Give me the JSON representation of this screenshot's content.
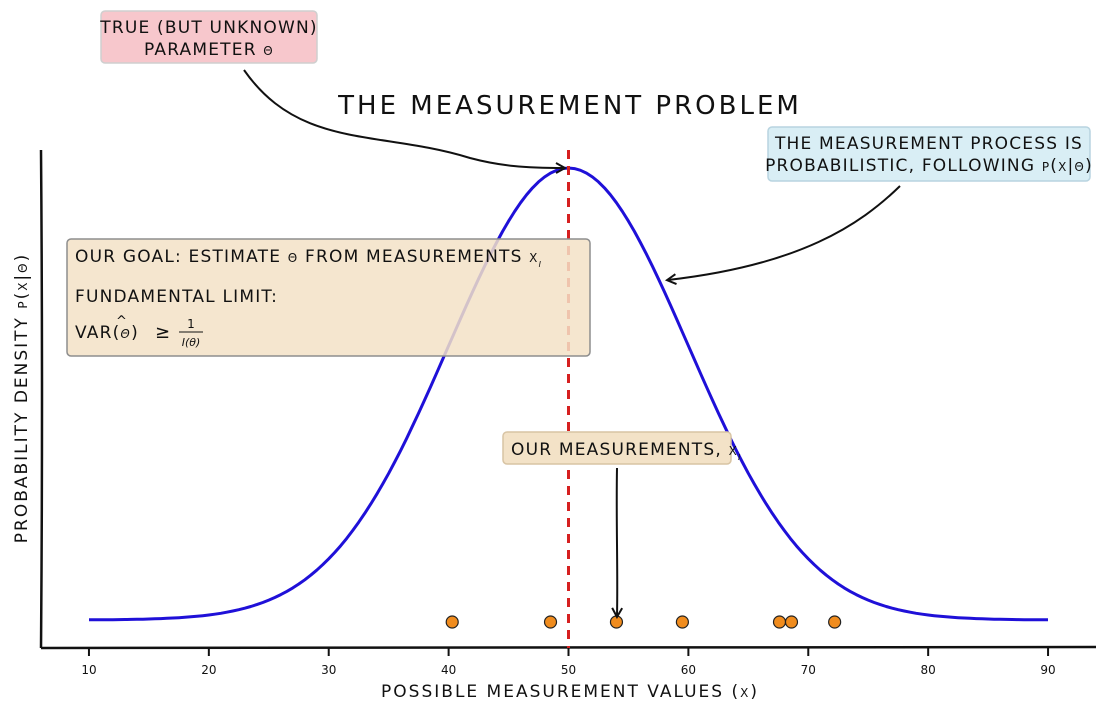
{
  "chart_data": {
    "type": "line",
    "title": "THE MEASUREMENT PROBLEM",
    "xlabel": "POSSIBLE MEASUREMENT VALUES (x)",
    "ylabel": "PROBABILITY DENSITY p(x|θ)",
    "xlim": [
      6,
      94
    ],
    "ylim": [
      0,
      1.0
    ],
    "xticks": [
      10,
      20,
      30,
      40,
      50,
      60,
      70,
      80,
      90
    ],
    "grid": false,
    "legend": "none",
    "true_parameter": 50,
    "density_curve": {
      "mean": 50,
      "sd": 10,
      "color": "#1f10d8"
    },
    "true_parameter_line": {
      "x": 50,
      "color": "#d62020"
    },
    "measurements": {
      "x": [
        40.3,
        48.5,
        54.0,
        59.5,
        67.6,
        68.6,
        72.2
      ],
      "color": "#f08c1e"
    },
    "annotations": {
      "true_param": [
        "TRUE (BUT UNKNOWN)",
        "PARAMETER θ"
      ],
      "process": [
        "THE MEASUREMENT PROCESS IS",
        "PROBABILISTIC, FOLLOWING p(x|θ)"
      ],
      "goal": "OUR GOAL: ESTIMATE θ FROM MEASUREMENTS x",
      "goal_subscript": "i",
      "limit": "FUNDAMENTAL LIMIT:",
      "var": "VAR(",
      "var_symbol": "θ",
      "var_hat": "^",
      "var_close": ")",
      "geq": "≥",
      "fraction_numerator": "1",
      "fraction_denominator": "I(θ)",
      "measurements": "OUR MEASUREMENTS, x",
      "measurements_subscript": "i"
    }
  }
}
